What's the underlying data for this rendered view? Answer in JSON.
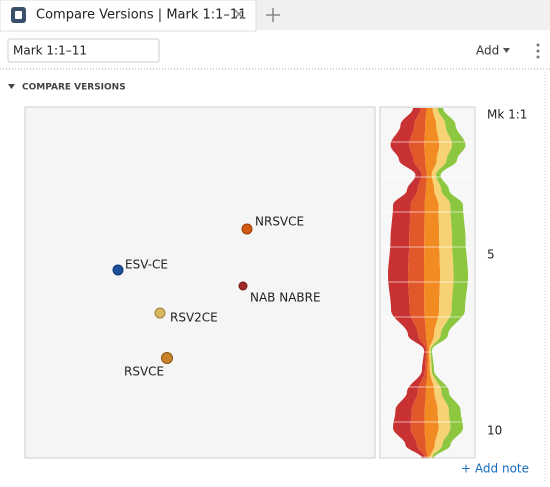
{
  "tab": {
    "title": "Compare Versions | Mark 1:1–11"
  },
  "toolbar": {
    "reference": "Mark 1:1–11",
    "add": "Add"
  },
  "section": {
    "title": "COMPARE VERSIONS"
  },
  "versions": [
    {
      "label": "ESV-CE"
    },
    {
      "label": "NRSVCE"
    },
    {
      "label": "NAB NABRE"
    },
    {
      "label": "RSV2CE"
    },
    {
      "label": "RSVCE"
    }
  ],
  "references": [
    "Mk 1:1",
    "5",
    "10"
  ],
  "footer": {
    "add_note": "+ Add note"
  }
}
